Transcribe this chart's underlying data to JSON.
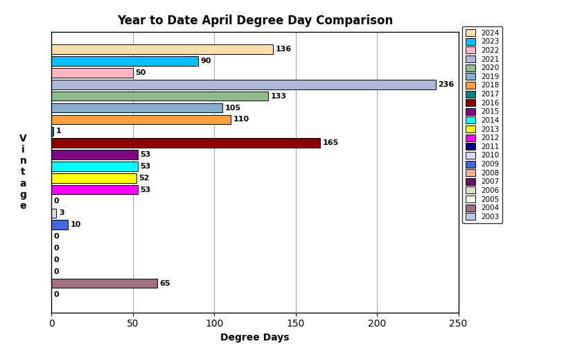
{
  "title": "Year to Date April Degree Day Comparison",
  "xlabel": "Degree Days",
  "ylabel": "V\ni\nn\nt\na\ng\ne",
  "years": [
    "2024",
    "2023",
    "2022",
    "2021",
    "2020",
    "2019",
    "2018",
    "2017",
    "2016",
    "2015",
    "2014",
    "2013",
    "2012",
    "2011",
    "2010",
    "2009",
    "2008",
    "2007",
    "2006",
    "2005",
    "2004",
    "2003"
  ],
  "values": [
    136,
    90,
    50,
    236,
    133,
    105,
    110,
    1,
    165,
    53,
    53,
    52,
    53,
    0,
    3,
    10,
    0,
    0,
    0,
    0,
    65,
    0
  ],
  "colors": [
    "#FFDEAD",
    "#00BFFF",
    "#FFB6C1",
    "#B0B8D8",
    "#8FBC8F",
    "#87AECE",
    "#FFA040",
    "#008080",
    "#8B0000",
    "#800080",
    "#00FFFF",
    "#FFFF00",
    "#FF00FF",
    "#00008B",
    "#D8D8F0",
    "#4169E1",
    "#FFB090",
    "#6B1060",
    "#DCDCC8",
    "#FFFFF0",
    "#A07080",
    "#C0C8E8"
  ],
  "xlim": [
    0,
    250
  ],
  "xticks": [
    0,
    50,
    100,
    150,
    200,
    250
  ],
  "figwidth": 8.27,
  "figheight": 5.12,
  "dpi": 100
}
